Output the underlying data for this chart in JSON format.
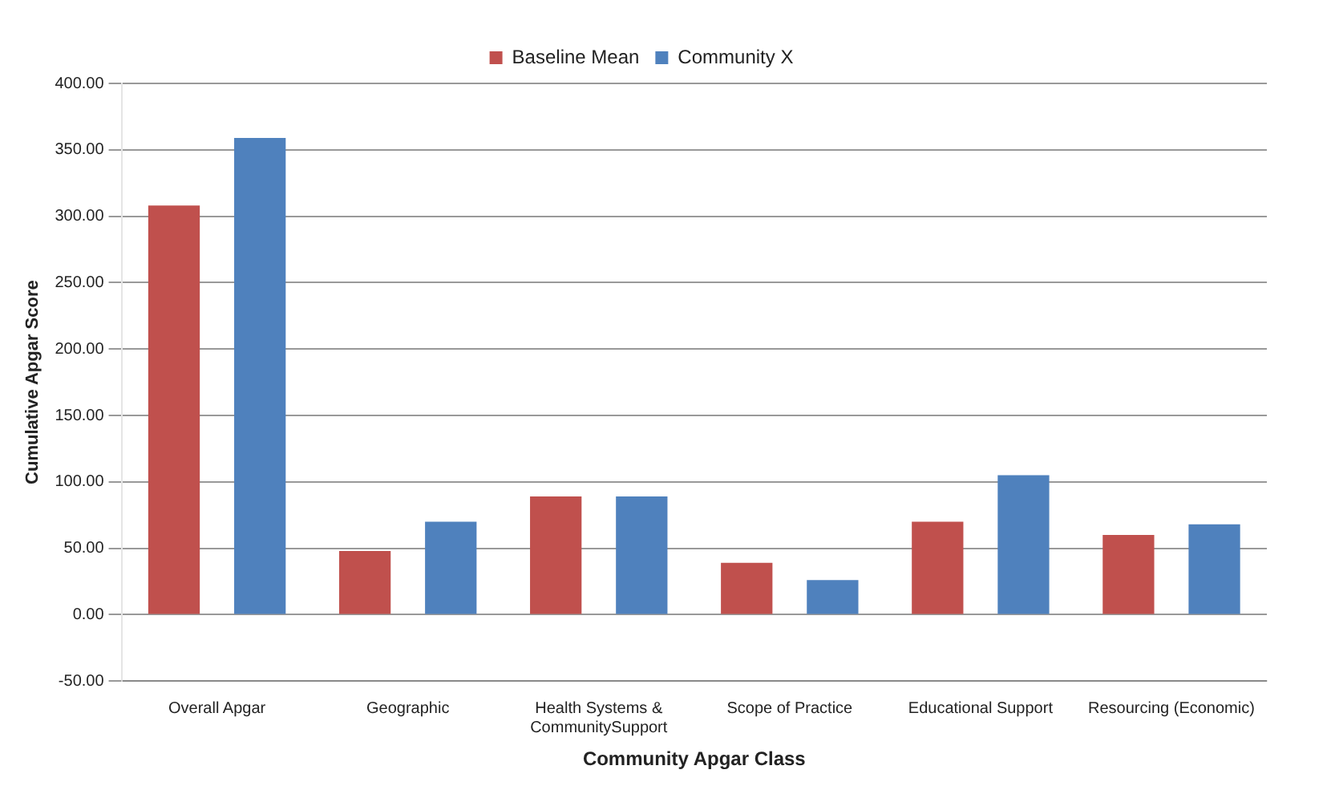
{
  "chart_data": {
    "type": "bar",
    "xlabel": "Community Apgar Class",
    "ylabel": "Cumulative Apgar Score",
    "categories": [
      "Overall Apgar",
      "Geographic",
      "Health Systems &\nCommunitySupport",
      "Scope of Practice",
      "Educational Support",
      "Resourcing (Economic)"
    ],
    "series": [
      {
        "name": "Baseline Mean",
        "color": "#c0504d",
        "values": [
          308,
          48,
          89,
          39,
          70,
          60
        ]
      },
      {
        "name": "Community X",
        "color": "#4f81bd",
        "values": [
          359,
          70,
          89,
          26,
          105,
          68
        ]
      }
    ],
    "ylim": [
      -50,
      400
    ],
    "yticks": [
      {
        "value": -50,
        "label": "-50.00"
      },
      {
        "value": 0,
        "label": "0.00"
      },
      {
        "value": 50,
        "label": "50.00"
      },
      {
        "value": 100,
        "label": "100.00"
      },
      {
        "value": 150,
        "label": "150.00"
      },
      {
        "value": 200,
        "label": "200.00"
      },
      {
        "value": 250,
        "label": "250.00"
      },
      {
        "value": 300,
        "label": "300.00"
      },
      {
        "value": 350,
        "label": "350.00"
      },
      {
        "value": 400,
        "label": "400.00"
      }
    ],
    "grid": "y",
    "legend": "top"
  }
}
